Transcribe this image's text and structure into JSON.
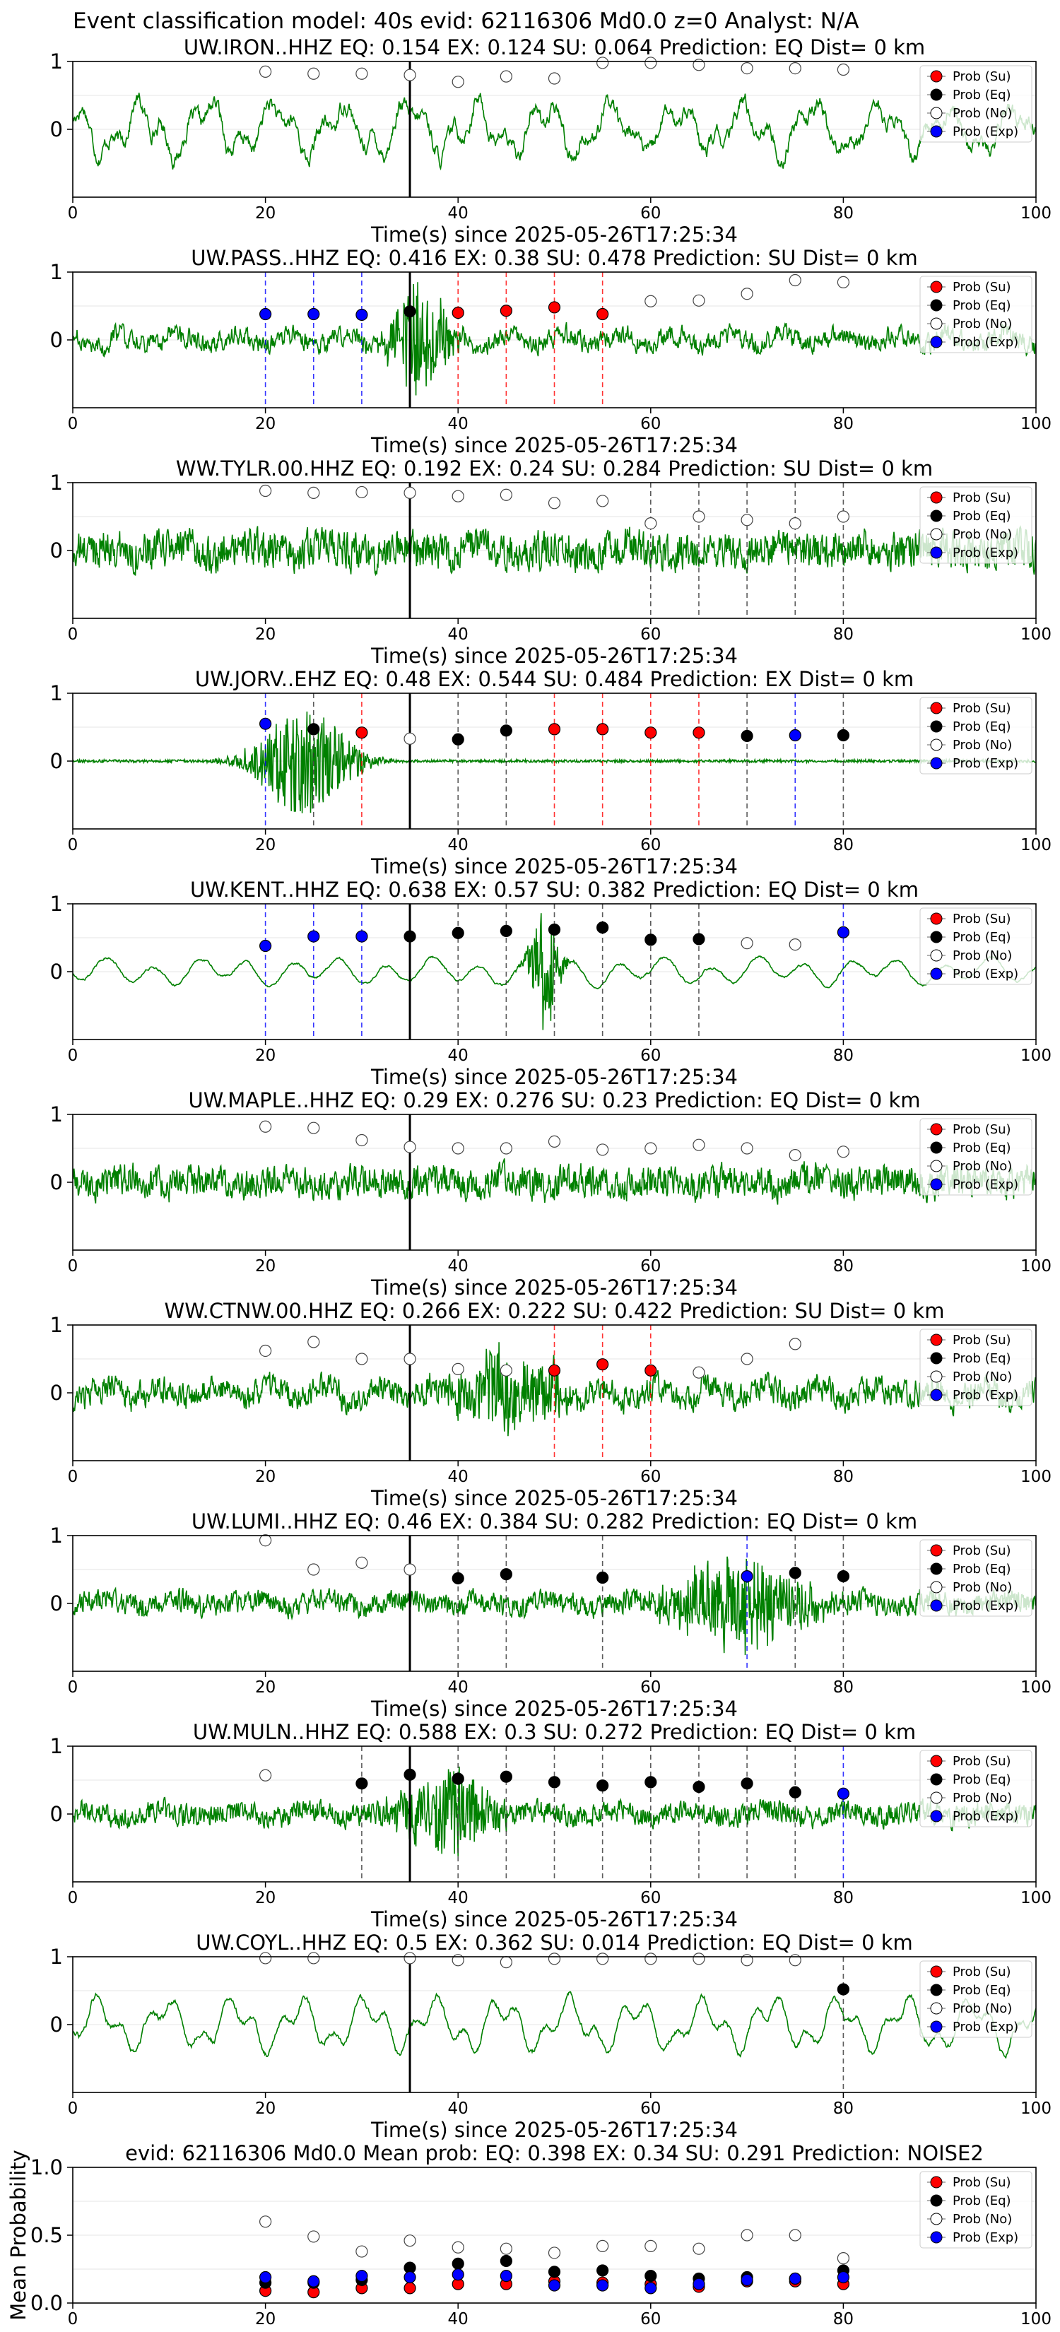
{
  "figure_title": "Event classification model: 40s evid: 62116306 Md0.0 z=0 Analyst: N/A",
  "legend": [
    "Prob (Su)",
    "Prob (Eq)",
    "Prob (No)",
    "Prob (Exp)"
  ],
  "colors": {
    "su": "#ff0000",
    "eq": "#000000",
    "no": "#ffffff",
    "exp": "#0000ff",
    "trace": "#008000",
    "line_su": "#ff0000",
    "line_eq": "#000000",
    "line_exp": "#0000ff"
  },
  "chart_data": [
    {
      "type": "line",
      "title": "UW.IRON..HHZ   EQ: 0.154  EX: 0.124  SU: 0.064   Prediction: EQ    Dist= 0 km",
      "xlabel": "Time(s) since 2025-05-26T17:25:34",
      "xlim": [
        0,
        100
      ],
      "ylim": [
        -1,
        1
      ],
      "xticks": [
        "0",
        "20",
        "40",
        "60",
        "80",
        "100"
      ],
      "yticks": [
        "1",
        "0"
      ],
      "event_line": 35,
      "noise": 0.35,
      "style": "lowfreq",
      "burst": null,
      "x": [
        20,
        25,
        30,
        35,
        40,
        45,
        50,
        55,
        60,
        65,
        70,
        75,
        80
      ],
      "class": [
        "no",
        "no",
        "no",
        "no",
        "no",
        "no",
        "no",
        "no",
        "no",
        "no",
        "no",
        "no",
        "no"
      ],
      "prob": [
        0.85,
        0.82,
        0.82,
        0.8,
        0.7,
        0.78,
        0.75,
        0.98,
        0.98,
        0.95,
        0.9,
        0.9,
        0.88
      ],
      "vlines": []
    },
    {
      "type": "line",
      "title": "UW.PASS..HHZ   EQ: 0.416  EX: 0.38  SU: 0.478   Prediction: SU    Dist= 0 km",
      "xlabel": "Time(s) since 2025-05-26T17:25:34",
      "xlim": [
        0,
        100
      ],
      "ylim": [
        -1,
        1
      ],
      "xticks": [
        "0",
        "20",
        "40",
        "60",
        "80",
        "100"
      ],
      "yticks": [
        "1",
        "0"
      ],
      "event_line": 35,
      "noise": 0.22,
      "style": "mixed",
      "burst": {
        "center": 36,
        "width": 3,
        "amp": 0.85
      },
      "x": [
        20,
        25,
        30,
        35,
        40,
        45,
        50,
        55,
        60,
        65,
        70,
        75,
        80
      ],
      "class": [
        "exp",
        "exp",
        "exp",
        "eq",
        "su",
        "su",
        "su",
        "su",
        "no",
        "no",
        "no",
        "no",
        "no"
      ],
      "prob": [
        0.38,
        0.38,
        0.37,
        0.42,
        0.4,
        0.43,
        0.48,
        0.38,
        0.57,
        0.58,
        0.68,
        0.88,
        0.85
      ],
      "vlines": [
        {
          "x": 20,
          "c": "exp"
        },
        {
          "x": 25,
          "c": "exp"
        },
        {
          "x": 30,
          "c": "exp"
        },
        {
          "x": 40,
          "c": "su"
        },
        {
          "x": 45,
          "c": "su"
        },
        {
          "x": 50,
          "c": "su"
        },
        {
          "x": 55,
          "c": "su"
        }
      ]
    },
    {
      "type": "line",
      "title": "WW.TYLR.00.HHZ   EQ: 0.192  EX: 0.24  SU: 0.284   Prediction: SU    Dist= 0 km",
      "xlabel": "Time(s) since 2025-05-26T17:25:34",
      "xlim": [
        0,
        100
      ],
      "ylim": [
        -1,
        1
      ],
      "xticks": [
        "0",
        "20",
        "40",
        "60",
        "80",
        "100"
      ],
      "yticks": [
        "1",
        "0"
      ],
      "event_line": 35,
      "noise": 0.38,
      "style": "hf",
      "burst": null,
      "x": [
        20,
        25,
        30,
        35,
        40,
        45,
        50,
        55,
        60,
        65,
        70,
        75,
        80
      ],
      "class": [
        "no",
        "no",
        "no",
        "no",
        "no",
        "no",
        "no",
        "no",
        "no",
        "no",
        "no",
        "no",
        "no"
      ],
      "prob": [
        0.88,
        0.85,
        0.86,
        0.85,
        0.8,
        0.82,
        0.7,
        0.73,
        0.4,
        0.5,
        0.45,
        0.4,
        0.5
      ],
      "vlines": [
        {
          "x": 60,
          "c": "eq"
        },
        {
          "x": 65,
          "c": "eq"
        },
        {
          "x": 70,
          "c": "eq"
        },
        {
          "x": 75,
          "c": "eq"
        },
        {
          "x": 80,
          "c": "eq"
        }
      ]
    },
    {
      "type": "line",
      "title": "UW.JORV..EHZ   EQ: 0.48  EX: 0.544  SU: 0.484   Prediction: EX    Dist= 0 km",
      "xlabel": "Time(s) since 2025-05-26T17:25:34",
      "xlim": [
        0,
        100
      ],
      "ylim": [
        -1,
        1
      ],
      "xticks": [
        "0",
        "20",
        "40",
        "60",
        "80",
        "100"
      ],
      "yticks": [
        "1",
        "0"
      ],
      "event_line": 35,
      "noise": 0.02,
      "style": "quiet",
      "burst": {
        "center": 24,
        "width": 5,
        "amp": 0.8
      },
      "x": [
        20,
        25,
        30,
        35,
        40,
        45,
        50,
        55,
        60,
        65,
        70,
        75,
        80
      ],
      "class": [
        "exp",
        "eq",
        "su",
        "no",
        "eq",
        "eq",
        "su",
        "su",
        "su",
        "su",
        "eq",
        "exp",
        "eq"
      ],
      "prob": [
        0.55,
        0.47,
        0.42,
        0.33,
        0.32,
        0.45,
        0.47,
        0.47,
        0.42,
        0.42,
        0.37,
        0.38,
        0.38
      ],
      "vlines": [
        {
          "x": 20,
          "c": "exp"
        },
        {
          "x": 25,
          "c": "eq"
        },
        {
          "x": 30,
          "c": "su"
        },
        {
          "x": 40,
          "c": "eq"
        },
        {
          "x": 45,
          "c": "eq"
        },
        {
          "x": 50,
          "c": "su"
        },
        {
          "x": 55,
          "c": "su"
        },
        {
          "x": 60,
          "c": "su"
        },
        {
          "x": 65,
          "c": "su"
        },
        {
          "x": 70,
          "c": "eq"
        },
        {
          "x": 75,
          "c": "exp"
        },
        {
          "x": 80,
          "c": "eq"
        }
      ]
    },
    {
      "type": "line",
      "title": "UW.KENT..HHZ   EQ: 0.638  EX: 0.57  SU: 0.382   Prediction: EQ    Dist= 0 km",
      "xlabel": "Time(s) since 2025-05-26T17:25:34",
      "xlim": [
        0,
        100
      ],
      "ylim": [
        -1,
        1
      ],
      "xticks": [
        "0",
        "20",
        "40",
        "60",
        "80",
        "100"
      ],
      "yticks": [
        "1",
        "0"
      ],
      "event_line": 35,
      "noise": 0.15,
      "style": "smooth",
      "burst": {
        "center": 49,
        "width": 1.5,
        "amp": 0.9
      },
      "x": [
        20,
        25,
        30,
        35,
        40,
        45,
        50,
        55,
        60,
        65,
        70,
        75,
        80
      ],
      "class": [
        "exp",
        "exp",
        "exp",
        "eq",
        "eq",
        "eq",
        "eq",
        "eq",
        "eq",
        "eq",
        "no",
        "no",
        "exp"
      ],
      "prob": [
        0.38,
        0.52,
        0.52,
        0.52,
        0.57,
        0.6,
        0.62,
        0.65,
        0.47,
        0.48,
        0.42,
        0.4,
        0.58
      ],
      "vlines": [
        {
          "x": 20,
          "c": "exp"
        },
        {
          "x": 25,
          "c": "exp"
        },
        {
          "x": 30,
          "c": "exp"
        },
        {
          "x": 40,
          "c": "eq"
        },
        {
          "x": 45,
          "c": "eq"
        },
        {
          "x": 50,
          "c": "eq"
        },
        {
          "x": 55,
          "c": "eq"
        },
        {
          "x": 60,
          "c": "eq"
        },
        {
          "x": 65,
          "c": "eq"
        },
        {
          "x": 80,
          "c": "exp"
        }
      ]
    },
    {
      "type": "line",
      "title": "UW.MAPLE..HHZ   EQ: 0.29  EX: 0.276  SU: 0.23   Prediction: EQ    Dist= 0 km",
      "xlabel": "Time(s) since 2025-05-26T17:25:34",
      "xlim": [
        0,
        100
      ],
      "ylim": [
        -1,
        1
      ],
      "xticks": [
        "0",
        "20",
        "40",
        "60",
        "80",
        "100"
      ],
      "yticks": [
        "1",
        "0"
      ],
      "event_line": 35,
      "noise": 0.32,
      "style": "hf",
      "burst": null,
      "x": [
        20,
        25,
        30,
        35,
        40,
        45,
        50,
        55,
        60,
        65,
        70,
        75,
        80
      ],
      "class": [
        "no",
        "no",
        "no",
        "no",
        "no",
        "no",
        "no",
        "no",
        "no",
        "no",
        "no",
        "no",
        "no"
      ],
      "prob": [
        0.82,
        0.8,
        0.62,
        0.52,
        0.5,
        0.5,
        0.6,
        0.48,
        0.5,
        0.55,
        0.5,
        0.4,
        0.45
      ],
      "vlines": []
    },
    {
      "type": "line",
      "title": "WW.CTNW.00.HHZ   EQ: 0.266  EX: 0.222  SU: 0.422   Prediction: SU    Dist= 0 km",
      "xlabel": "Time(s) since 2025-05-26T17:25:34",
      "xlim": [
        0,
        100
      ],
      "ylim": [
        -1,
        1
      ],
      "xticks": [
        "0",
        "20",
        "40",
        "60",
        "80",
        "100"
      ],
      "yticks": [
        "1",
        "0"
      ],
      "event_line": 35,
      "noise": 0.3,
      "style": "mixed",
      "burst": {
        "center": 45,
        "width": 6,
        "amp": 0.55
      },
      "x": [
        20,
        25,
        30,
        35,
        40,
        45,
        50,
        55,
        60,
        65,
        70,
        75
      ],
      "class": [
        "no",
        "no",
        "no",
        "no",
        "no",
        "no",
        "su",
        "su",
        "su",
        "no",
        "no",
        "no"
      ],
      "prob": [
        0.62,
        0.75,
        0.5,
        0.5,
        0.35,
        0.33,
        0.33,
        0.42,
        0.33,
        0.3,
        0.5,
        0.72
      ],
      "vlines": [
        {
          "x": 50,
          "c": "su"
        },
        {
          "x": 55,
          "c": "su"
        },
        {
          "x": 60,
          "c": "su"
        }
      ]
    },
    {
      "type": "line",
      "title": "UW.LUMI..HHZ   EQ: 0.46  EX: 0.384  SU: 0.282   Prediction: EQ    Dist= 0 km",
      "xlabel": "Time(s) since 2025-05-26T17:25:34",
      "xlim": [
        0,
        100
      ],
      "ylim": [
        -1,
        1
      ],
      "xticks": [
        "0",
        "20",
        "40",
        "60",
        "80",
        "100"
      ],
      "yticks": [
        "1",
        "0"
      ],
      "event_line": 35,
      "noise": 0.22,
      "style": "hf",
      "burst": {
        "center": 69,
        "width": 7,
        "amp": 0.65
      },
      "x": [
        20,
        25,
        30,
        35,
        40,
        45,
        55,
        70,
        75,
        80
      ],
      "class": [
        "no",
        "no",
        "no",
        "no",
        "eq",
        "eq",
        "eq",
        "exp",
        "eq",
        "eq"
      ],
      "prob": [
        0.93,
        0.5,
        0.6,
        0.5,
        0.37,
        0.43,
        0.38,
        0.4,
        0.45,
        0.4
      ],
      "vlines": [
        {
          "x": 40,
          "c": "eq"
        },
        {
          "x": 45,
          "c": "eq"
        },
        {
          "x": 55,
          "c": "eq"
        },
        {
          "x": 70,
          "c": "exp"
        },
        {
          "x": 75,
          "c": "eq"
        },
        {
          "x": 80,
          "c": "eq"
        }
      ]
    },
    {
      "type": "line",
      "title": "UW.MULN..HHZ   EQ: 0.588  EX: 0.3  SU: 0.272   Prediction: EQ    Dist= 0 km",
      "xlabel": "Time(s) since 2025-05-26T17:25:34",
      "xlim": [
        0,
        100
      ],
      "ylim": [
        -1,
        1
      ],
      "xticks": [
        "0",
        "20",
        "40",
        "60",
        "80",
        "100"
      ],
      "yticks": [
        "1",
        "0"
      ],
      "event_line": 35,
      "noise": 0.22,
      "style": "hf",
      "burst": {
        "center": 39,
        "width": 5,
        "amp": 0.6
      },
      "x": [
        20,
        30,
        35,
        40,
        45,
        50,
        55,
        60,
        65,
        70,
        75,
        80
      ],
      "class": [
        "no",
        "eq",
        "eq",
        "eq",
        "eq",
        "eq",
        "eq",
        "eq",
        "eq",
        "eq",
        "eq",
        "exp"
      ],
      "prob": [
        0.57,
        0.45,
        0.58,
        0.52,
        0.55,
        0.47,
        0.42,
        0.47,
        0.4,
        0.45,
        0.32,
        0.3
      ],
      "vlines": [
        {
          "x": 30,
          "c": "eq"
        },
        {
          "x": 40,
          "c": "eq"
        },
        {
          "x": 45,
          "c": "eq"
        },
        {
          "x": 50,
          "c": "eq"
        },
        {
          "x": 55,
          "c": "eq"
        },
        {
          "x": 60,
          "c": "eq"
        },
        {
          "x": 65,
          "c": "eq"
        },
        {
          "x": 70,
          "c": "eq"
        },
        {
          "x": 75,
          "c": "eq"
        },
        {
          "x": 80,
          "c": "exp"
        }
      ]
    },
    {
      "type": "line",
      "title": "UW.COYL..HHZ   EQ: 0.5  EX: 0.362  SU: 0.014   Prediction: EQ    Dist= 0 km",
      "xlabel": "Time(s) since 2025-05-26T17:25:34",
      "xlim": [
        0,
        100
      ],
      "ylim": [
        -1,
        1
      ],
      "xticks": [
        "0",
        "20",
        "40",
        "60",
        "80",
        "100"
      ],
      "yticks": [
        "1",
        "0"
      ],
      "event_line": 35,
      "noise": 0.12,
      "style": "lowfreq",
      "burst": null,
      "x": [
        20,
        25,
        35,
        40,
        45,
        50,
        55,
        60,
        65,
        70,
        75,
        80
      ],
      "class": [
        "no",
        "no",
        "no",
        "no",
        "no",
        "no",
        "no",
        "no",
        "no",
        "no",
        "no",
        "eq"
      ],
      "prob": [
        0.98,
        0.98,
        0.98,
        0.95,
        0.92,
        0.97,
        0.97,
        0.97,
        0.97,
        0.95,
        0.95,
        0.52
      ],
      "vlines": [
        {
          "x": 80,
          "c": "eq"
        }
      ]
    },
    {
      "type": "scatter",
      "title": "evid: 62116306  Md0.0   Mean prob:   EQ: 0.398  EX: 0.34  SU: 0.291   Prediction: NOISE2",
      "xlabel": "",
      "ylabel": "Mean Probability",
      "xlim": [
        0,
        100
      ],
      "ylim": [
        0,
        1
      ],
      "xticks": [
        "0",
        "20",
        "40",
        "60",
        "80",
        "100"
      ],
      "yticks": [
        "1.0",
        "0.5",
        "0.0"
      ],
      "x": [
        20,
        25,
        30,
        35,
        40,
        45,
        50,
        55,
        60,
        65,
        70,
        75,
        80
      ],
      "series": [
        {
          "name": "Prob (Su)",
          "class": "su",
          "values": [
            0.09,
            0.08,
            0.11,
            0.11,
            0.14,
            0.14,
            0.16,
            0.15,
            0.14,
            0.12,
            0.16,
            0.16,
            0.14
          ]
        },
        {
          "name": "Prob (Eq)",
          "class": "eq",
          "values": [
            0.15,
            0.15,
            0.17,
            0.26,
            0.29,
            0.31,
            0.23,
            0.24,
            0.2,
            0.18,
            0.19,
            0.18,
            0.24
          ]
        },
        {
          "name": "Prob (No)",
          "class": "no",
          "values": [
            0.6,
            0.49,
            0.38,
            0.46,
            0.41,
            0.4,
            0.37,
            0.42,
            0.42,
            0.4,
            0.5,
            0.5,
            0.33
          ]
        },
        {
          "name": "Prob (Exp)",
          "class": "exp",
          "values": [
            0.19,
            0.16,
            0.2,
            0.19,
            0.21,
            0.2,
            0.13,
            0.13,
            0.11,
            0.14,
            0.17,
            0.18,
            0.19
          ]
        }
      ]
    }
  ]
}
